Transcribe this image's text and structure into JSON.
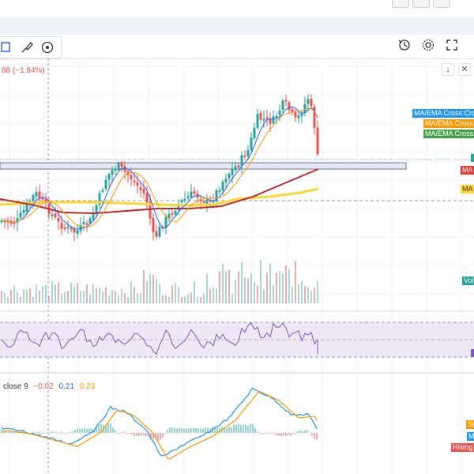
{
  "header": {
    "change_text": "88 (−1.94%)"
  },
  "macd_header": {
    "label": "close 9",
    "values": [
      "−0.02",
      "0.21",
      "0.23"
    ]
  },
  "right_labels": {
    "ma_ema_cross_1": "MA/EMA Cross:Cross",
    "ma_ema_cross_2": "MA/EMA Cross:Cross",
    "ma_ema_cross_3": "MA/EMA Cross:Cross",
    "ma_red": "MA",
    "ma_yellow": "MA",
    "volume": "Vol",
    "signal": "Si",
    "macd": "M",
    "histogram": "Histog"
  },
  "colors": {
    "up": "#26a69a",
    "down": "#ef5350",
    "ma_fast": "#2962ff",
    "ma_slow": "#ff9800",
    "ma_red": "#c62828",
    "ma_yellow": "#fdd835",
    "rsi": "#7e57c2",
    "macd_line": "#2196f3",
    "signal_line": "#ff9800"
  },
  "toolbar": {
    "left_icons": [
      "rectangle-select-icon",
      "brush-icon",
      "eye-icon"
    ],
    "right_icons": [
      "replay-clock-icon",
      "settings-gear-icon",
      "fullscreen-icon"
    ]
  },
  "controls": {
    "down_arrow": "↓",
    "close": "✕"
  }
}
